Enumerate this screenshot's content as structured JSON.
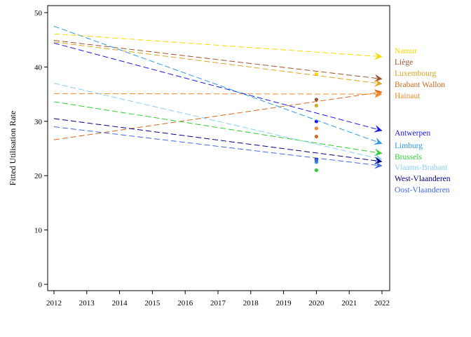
{
  "chart_data": {
    "type": "line",
    "title": "",
    "xlabel": "",
    "ylabel": "Fitted Utilisation Rate",
    "xlim": [
      2012,
      2022
    ],
    "ylim": [
      0,
      50
    ],
    "x_ticks": [
      "2012",
      "2013",
      "2014",
      "2015",
      "2016",
      "2017",
      "2018",
      "2019",
      "2020",
      "2021",
      "2022"
    ],
    "y_ticks": [
      "0",
      "10",
      "20",
      "30",
      "40",
      "50"
    ],
    "grid": false,
    "legend": "right",
    "series": [
      {
        "name": "Namur",
        "color": "#FFD700",
        "line": {
          "x": [
            2012,
            2022
          ],
          "y": [
            46.1,
            41.9
          ]
        },
        "point": {
          "x": 2020,
          "y": 38.7
        }
      },
      {
        "name": "Liège",
        "color": "#A0522D",
        "line": {
          "x": [
            2012,
            2022
          ],
          "y": [
            44.9,
            37.8
          ]
        },
        "point": {
          "x": 2020,
          "y": 34.0
        }
      },
      {
        "name": "Luxembourg",
        "color": "#DAA520",
        "line": {
          "x": [
            2012,
            2022
          ],
          "y": [
            44.6,
            36.9
          ]
        },
        "point": {
          "x": 2020,
          "y": 32.9
        }
      },
      {
        "name": "Brabant Wallon",
        "color": "#D2691E",
        "line": {
          "x": [
            2012,
            2022
          ],
          "y": [
            26.6,
            35.4
          ]
        },
        "point": {
          "x": 2020,
          "y": 27.2
        }
      },
      {
        "name": "Hainaut",
        "color": "#F28C28",
        "line": {
          "x": [
            2012,
            2022
          ],
          "y": [
            35.1,
            35.0
          ]
        },
        "point": {
          "x": 2020,
          "y": 28.7
        }
      },
      {
        "name": "Antwerpen",
        "color": "#1A1AE6",
        "line": {
          "x": [
            2012,
            2022
          ],
          "y": [
            44.4,
            28.3
          ]
        },
        "point": {
          "x": 2020,
          "y": 30.0
        }
      },
      {
        "name": "Limburg",
        "color": "#2E9BE6",
        "line": {
          "x": [
            2012,
            2022
          ],
          "y": [
            47.5,
            25.9
          ]
        },
        "point": {
          "x": 2020,
          "y": 22.5
        }
      },
      {
        "name": "Brussels",
        "color": "#32CD32",
        "line": {
          "x": [
            2012,
            2022
          ],
          "y": [
            33.6,
            24.1
          ]
        },
        "point": {
          "x": 2020,
          "y": 21.0
        }
      },
      {
        "name": "Vlaams-Brabant",
        "color": "#87CEFA",
        "line": {
          "x": [
            2012,
            2022
          ],
          "y": [
            37.0,
            23.0
          ]
        },
        "point": {
          "x": 2020,
          "y": 22.9
        }
      },
      {
        "name": "West-Vlaanderen",
        "color": "#000080",
        "line": {
          "x": [
            2012,
            2022
          ],
          "y": [
            30.5,
            22.6
          ]
        },
        "point": {
          "x": 2020,
          "y": 23.0
        }
      },
      {
        "name": "Oost-Vlaanderen",
        "color": "#4169E1",
        "line": {
          "x": [
            2012,
            2022
          ],
          "y": [
            29.0,
            21.8
          ]
        },
        "point": {
          "x": 2020,
          "y": 22.8
        }
      }
    ]
  }
}
